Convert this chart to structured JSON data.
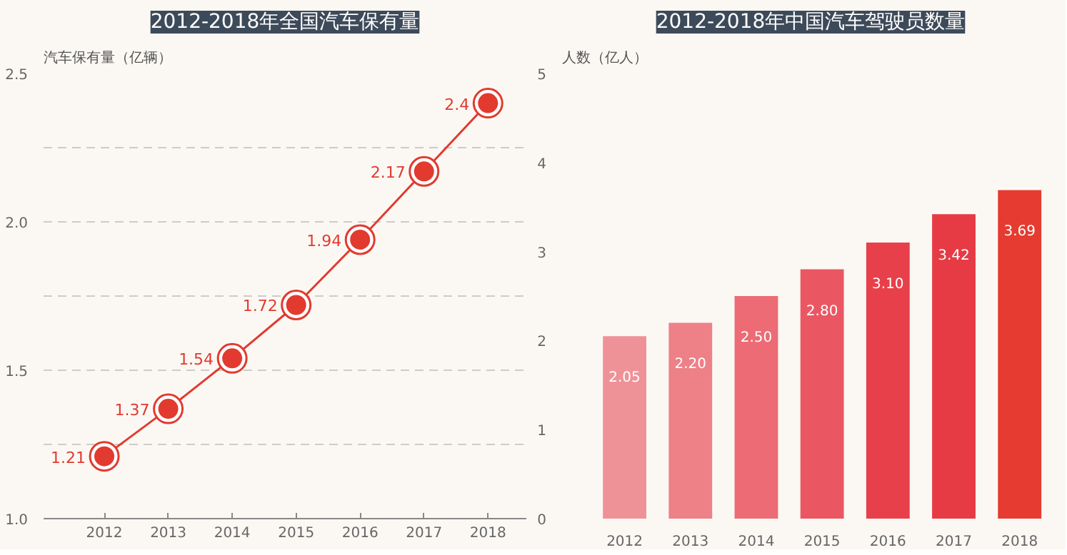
{
  "chart_data": [
    {
      "type": "line",
      "title": "2012-2018年全国汽车保有量",
      "ylabel": "汽车保有量（亿辆）",
      "categories": [
        "2012",
        "2013",
        "2014",
        "2015",
        "2016",
        "2017",
        "2018"
      ],
      "values": [
        1.21,
        1.37,
        1.54,
        1.72,
        1.94,
        2.17,
        2.4
      ],
      "color": "#e23a2e",
      "ylim": [
        1.0,
        2.5
      ],
      "yticks": [
        {
          "value": 1.0,
          "label": "1.0"
        },
        {
          "value": 1.25,
          "label": null
        },
        1.5,
        {
          "value": 1.75,
          "label": null
        },
        {
          "value": 2.0,
          "label": "2.0"
        },
        {
          "value": 2.25,
          "label": null
        },
        2.5
      ],
      "grid": "y",
      "marker": "circle",
      "line_style": "solid",
      "data_labels": true
    },
    {
      "type": "bar",
      "title": "2012-2018年中国汽车驾驶员数量",
      "ylabel": "人数（亿人）",
      "categories": [
        "2012",
        "2013",
        "2014",
        "2015",
        "2016",
        "2017",
        "2018"
      ],
      "values": [
        2.05,
        2.2,
        2.5,
        2.8,
        3.1,
        3.42,
        3.69
      ],
      "colors": [
        "#ef9298",
        "#ee8088",
        "#ec6b74",
        "#ea5762",
        "#e8404b",
        "#e63b44",
        "#e53b30"
      ],
      "value_labels": [
        "2.05",
        "2.20",
        "2.50",
        "2.80",
        "3.10",
        "3.42",
        "3.69"
      ],
      "ylim": [
        0,
        5
      ],
      "yticks": [
        0,
        1,
        2,
        3,
        4,
        5
      ],
      "grid": false
    }
  ]
}
